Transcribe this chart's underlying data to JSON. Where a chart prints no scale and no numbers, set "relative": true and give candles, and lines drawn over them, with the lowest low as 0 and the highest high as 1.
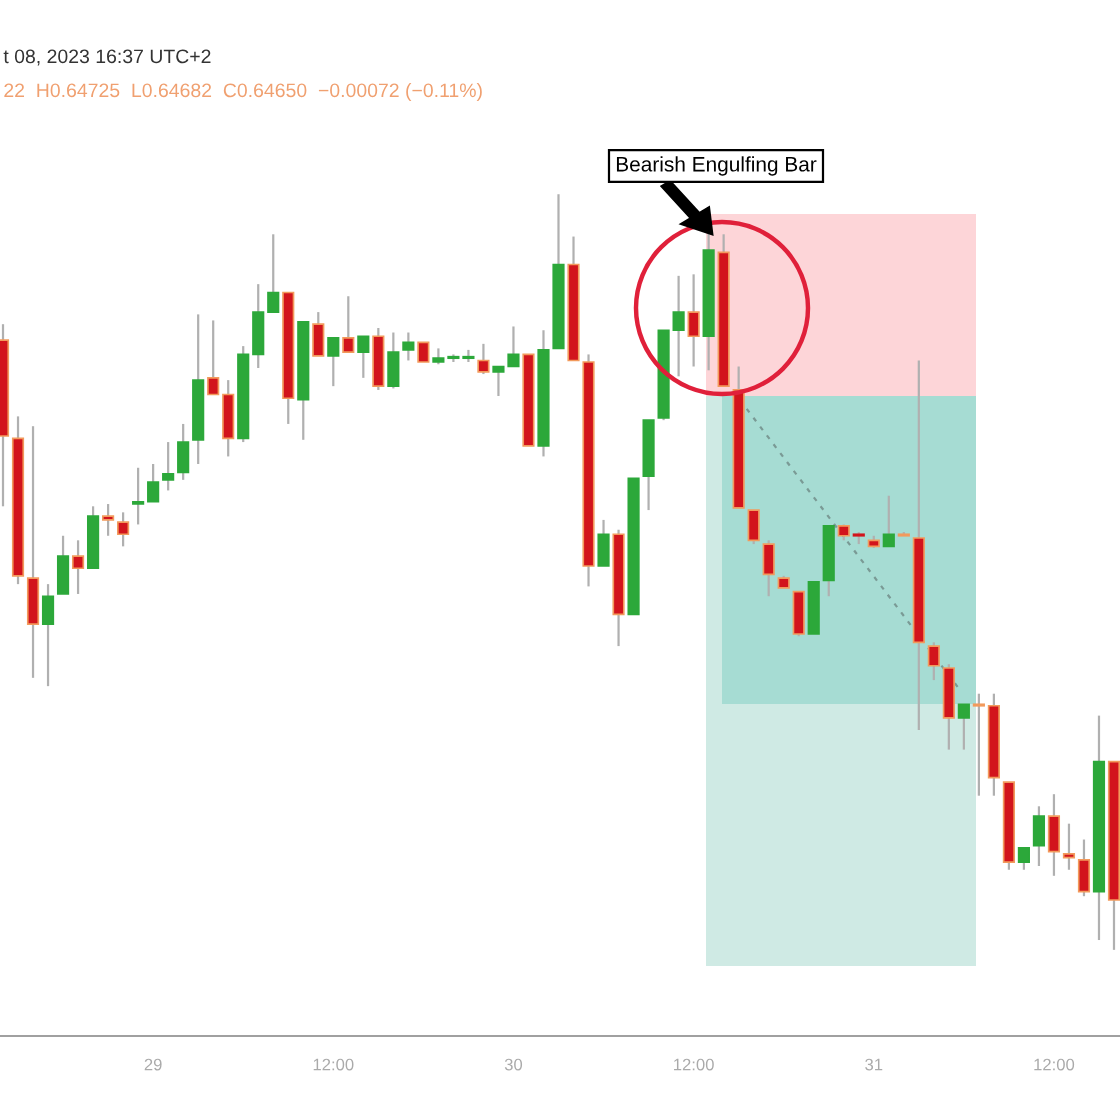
{
  "chart_data": {
    "type": "candlestick",
    "relative": true,
    "annotations": [
      "t 08, 2023 16:37 UTC+2",
      "22  H0.64725  L0.64682  C0.64650  −0.00072 (−0.11%)",
      "Bearish Engulfing Bar"
    ],
    "categories": [
      null,
      null,
      null,
      null,
      null,
      null,
      null,
      null,
      null,
      null,
      "29",
      null,
      null,
      null,
      null,
      null,
      null,
      null,
      null,
      null,
      null,
      null,
      "12:00",
      null,
      null,
      null,
      null,
      null,
      null,
      null,
      null,
      null,
      null,
      null,
      "30",
      null,
      null,
      null,
      null,
      null,
      null,
      null,
      null,
      null,
      null,
      null,
      "12:00",
      null,
      null,
      null,
      null,
      null,
      null,
      null,
      null,
      null,
      null,
      null,
      "31",
      null,
      null,
      null,
      null,
      null,
      null,
      null,
      null,
      null,
      null,
      null,
      "12:00",
      null,
      null,
      null,
      null
    ],
    "ohlc": [
      [
        0.807,
        0.828,
        0.587,
        0.68
      ],
      [
        0.677,
        0.706,
        0.484,
        0.495
      ],
      [
        0.492,
        0.693,
        0.36,
        0.431
      ],
      [
        0.431,
        0.484,
        0.349,
        0.468
      ],
      [
        0.471,
        0.548,
        0.471,
        0.521
      ],
      [
        0.521,
        0.542,
        0.471,
        0.505
      ],
      [
        0.505,
        0.587,
        0.505,
        0.574
      ],
      [
        0.574,
        0.59,
        0.548,
        0.569
      ],
      [
        0.566,
        0.579,
        0.534,
        0.55
      ],
      [
        0.59,
        0.638,
        0.563,
        0.593
      ],
      [
        0.593,
        0.643,
        0.593,
        0.619
      ],
      [
        0.622,
        0.672,
        0.608,
        0.63
      ],
      [
        0.632,
        0.696,
        0.622,
        0.672
      ],
      [
        0.675,
        0.841,
        0.643,
        0.754
      ],
      [
        0.757,
        0.833,
        0.735,
        0.735
      ],
      [
        0.735,
        0.754,
        0.653,
        0.677
      ],
      [
        0.677,
        0.799,
        0.672,
        0.788
      ],
      [
        0.788,
        0.881,
        0.77,
        0.844
      ],
      [
        0.844,
        0.947,
        0.844,
        0.87
      ],
      [
        0.87,
        0.87,
        0.696,
        0.73
      ],
      [
        0.728,
        0.831,
        0.675,
        0.831
      ],
      [
        0.828,
        0.844,
        0.786,
        0.786
      ],
      [
        0.786,
        0.81,
        0.746,
        0.81
      ],
      [
        0.81,
        0.865,
        0.791,
        0.791
      ],
      [
        0.791,
        0.812,
        0.757,
        0.812
      ],
      [
        0.812,
        0.823,
        0.741,
        0.746
      ],
      [
        0.746,
        0.817,
        0.743,
        0.791
      ],
      [
        0.794,
        0.817,
        0.78,
        0.804
      ],
      [
        0.804,
        0.804,
        0.778,
        0.778
      ],
      [
        0.778,
        0.796,
        0.775,
        0.783
      ],
      [
        0.783,
        0.788,
        0.778,
        0.783
      ],
      [
        0.783,
        0.794,
        0.778,
        0.783
      ],
      [
        0.78,
        0.802,
        0.762,
        0.765
      ],
      [
        0.765,
        0.772,
        0.733,
        0.772
      ],
      [
        0.772,
        0.825,
        0.772,
        0.788
      ],
      [
        0.788,
        0.788,
        0.667,
        0.667
      ],
      [
        0.667,
        0.82,
        0.653,
        0.794
      ],
      [
        0.796,
        1.0,
        0.796,
        0.907
      ],
      [
        0.907,
        0.944,
        0.78,
        0.78
      ],
      [
        0.778,
        0.788,
        0.481,
        0.508
      ],
      [
        0.508,
        0.569,
        0.508,
        0.55
      ],
      [
        0.55,
        0.556,
        0.402,
        0.444
      ],
      [
        0.444,
        0.624,
        0.444,
        0.624
      ],
      [
        0.627,
        0.701,
        0.582,
        0.701
      ],
      [
        0.704,
        0.82,
        0.701,
        0.82
      ],
      [
        0.82,
        0.892,
        0.759,
        0.844
      ],
      [
        0.844,
        0.894,
        0.772,
        0.812
      ],
      [
        0.812,
        0.952,
        0.767,
        0.926
      ],
      [
        0.923,
        0.947,
        0.746,
        0.746
      ],
      [
        0.741,
        0.772,
        0.585,
        0.585
      ],
      [
        0.582,
        0.582,
        0.537,
        0.542
      ],
      [
        0.537,
        0.542,
        0.468,
        0.497
      ],
      [
        0.492,
        0.495,
        0.479,
        0.479
      ],
      [
        0.474,
        0.474,
        0.415,
        0.418
      ],
      [
        0.418,
        0.487,
        0.418,
        0.487
      ],
      [
        0.489,
        0.561,
        0.468,
        0.561
      ],
      [
        0.561,
        0.563,
        0.542,
        0.548
      ],
      [
        0.548,
        0.553,
        0.537,
        0.548
      ],
      [
        0.542,
        0.548,
        0.532,
        0.534
      ],
      [
        0.534,
        0.601,
        0.534,
        0.55
      ],
      [
        0.55,
        0.553,
        0.548,
        0.548
      ],
      [
        0.545,
        0.78,
        0.291,
        0.407
      ],
      [
        0.402,
        0.407,
        0.357,
        0.376
      ],
      [
        0.373,
        0.378,
        0.265,
        0.307
      ],
      [
        0.307,
        0.325,
        0.265,
        0.325
      ],
      [
        0.325,
        0.339,
        0.204,
        0.323
      ],
      [
        0.323,
        0.339,
        0.204,
        0.228
      ],
      [
        0.222,
        0.222,
        0.106,
        0.116
      ],
      [
        0.116,
        0.135,
        0.106,
        0.135
      ],
      [
        0.138,
        0.19,
        0.111,
        0.177
      ],
      [
        0.177,
        0.206,
        0.098,
        0.13
      ],
      [
        0.127,
        0.167,
        0.106,
        0.122
      ],
      [
        0.119,
        0.146,
        0.071,
        0.077
      ],
      [
        0.077,
        0.31,
        0.013,
        0.249
      ],
      [
        0.249,
        0.249,
        0.0,
        0.066
      ]
    ],
    "colors": [
      "#d2141c",
      "#d2141c",
      "#d2141c",
      "#2ca83a",
      "#2ca83a",
      "#d2141c",
      "#2ca83a",
      "#d2141c",
      "#d2141c",
      "#2ca83a",
      "#2ca83a",
      "#2ca83a",
      "#2ca83a",
      "#2ca83a",
      "#d2141c",
      "#d2141c",
      "#2ca83a",
      "#2ca83a",
      "#2ca83a",
      "#d2141c",
      "#2ca83a",
      "#d2141c",
      "#2ca83a",
      "#d2141c",
      "#2ca83a",
      "#d2141c",
      "#2ca83a",
      "#2ca83a",
      "#d2141c",
      "#2ca83a",
      "#2ca83a",
      "#2ca83a",
      "#d2141c",
      "#2ca83a",
      "#2ca83a",
      "#d2141c",
      "#2ca83a",
      "#2ca83a",
      "#d2141c",
      "#d2141c",
      "#2ca83a",
      "#d2141c",
      "#2ca83a",
      "#2ca83a",
      "#2ca83a",
      "#2ca83a",
      "#d2141c",
      "#2ca83a",
      "#d2141c",
      "#d2141c",
      "#d2141c",
      "#d2141c",
      "#d2141c",
      "#d2141c",
      "#2ca83a",
      "#2ca83a",
      "#d2141c",
      "#d2141c",
      "#d2141c",
      "#2ca83a",
      "#d2141c",
      "#d2141c",
      "#d2141c",
      "#d2141c",
      "#2ca83a",
      "#d2141c",
      "#d2141c",
      "#d2141c",
      "#2ca83a",
      "#2ca83a",
      "#d2141c",
      "#d2141c",
      "#d2141c",
      "#2ca83a",
      "#d2141c"
    ]
  }
}
